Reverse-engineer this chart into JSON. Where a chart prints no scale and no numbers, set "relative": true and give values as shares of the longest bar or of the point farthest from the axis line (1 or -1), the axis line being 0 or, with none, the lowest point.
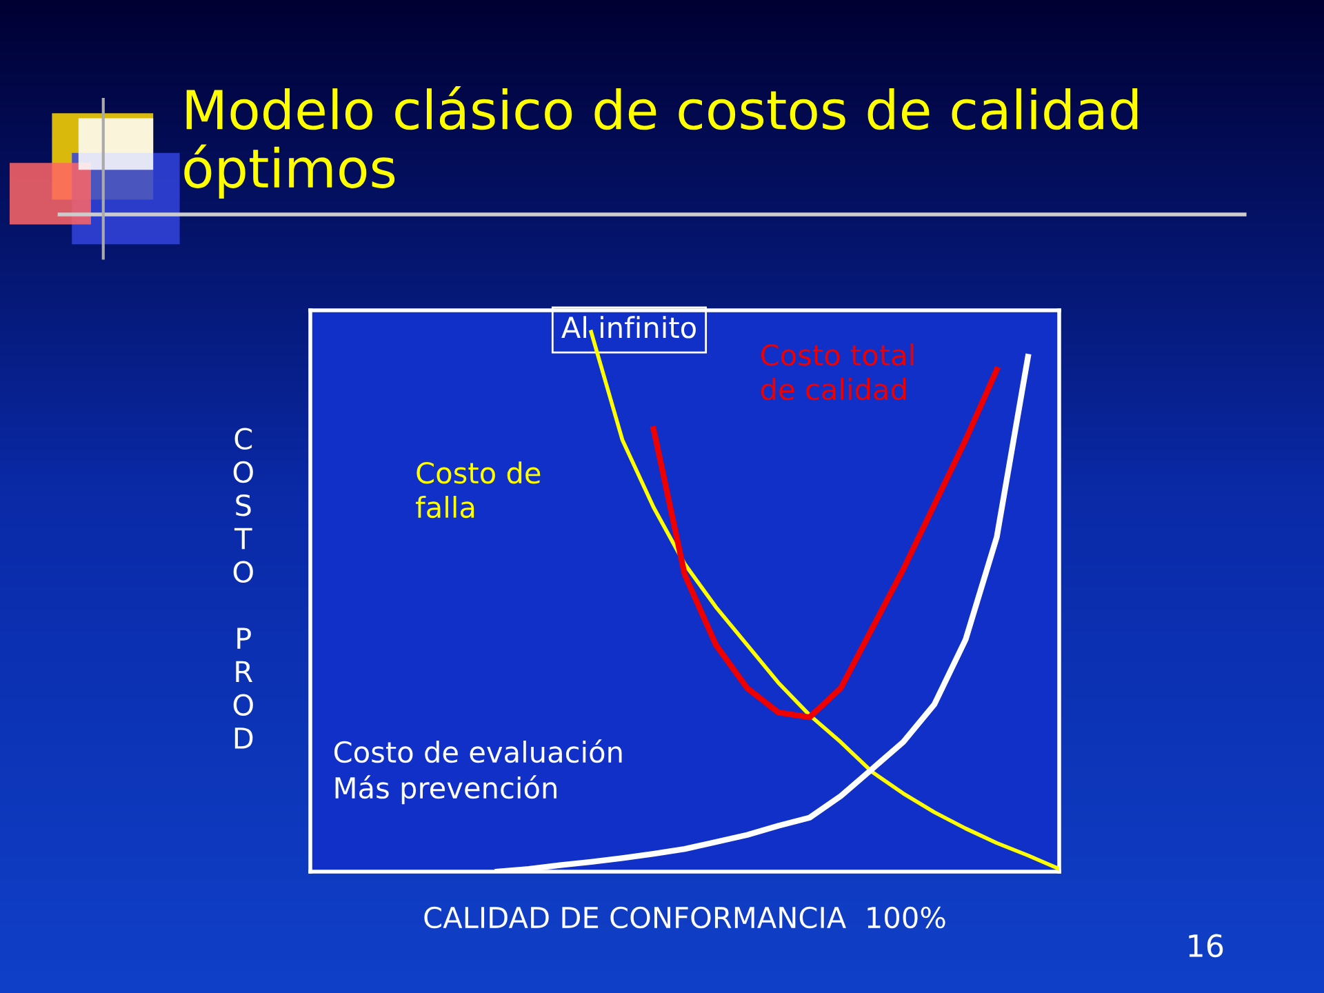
{
  "chart_data": {
    "type": "line",
    "relative": true,
    "title": "Modelo clásico de costos de calidad óptimos",
    "xlabel": "CALIDAD DE CONFORMANCIA  100%",
    "ylabel": "COSTO PROD",
    "marker": "none",
    "line_style": "solid",
    "categories": [
      null,
      null,
      null,
      null,
      null,
      null,
      null,
      null,
      null,
      null,
      null,
      null,
      null,
      null,
      null,
      null,
      null,
      null,
      null,
      null,
      null,
      null,
      null,
      null,
      null
    ],
    "series": [
      {
        "name": "Costo de\nfalla",
        "color": "#ffff00",
        "values": [
          null,
          null,
          null,
          null,
          null,
          null,
          null,
          null,
          null,
          1.0,
          0.8,
          0.675,
          0.57,
          0.49,
          0.42,
          0.35,
          0.29,
          0.24,
          0.185,
          0.145,
          0.11,
          0.08,
          0.053,
          0.03,
          0.005
        ]
      },
      {
        "name": "Costo total\nde calidad",
        "color": "#ee0000",
        "values": [
          null,
          null,
          null,
          null,
          null,
          null,
          null,
          null,
          null,
          null,
          null,
          0.82,
          0.55,
          0.42,
          0.34,
          0.295,
          0.286,
          0.34,
          0.45,
          0.56,
          0.68,
          0.8,
          0.93,
          null,
          null
        ]
      },
      {
        "name": "Costo de evaluación\nMás prevención",
        "color": "#ffffff",
        "values": [
          null,
          null,
          null,
          null,
          null,
          null,
          0.0,
          0.005,
          0.012,
          0.018,
          0.025,
          0.033,
          0.042,
          0.055,
          0.068,
          0.085,
          0.1,
          0.14,
          0.19,
          0.24,
          0.31,
          0.43,
          0.62,
          0.954,
          null
        ]
      }
    ],
    "annotations": [
      "Al infinito",
      "16"
    ]
  }
}
